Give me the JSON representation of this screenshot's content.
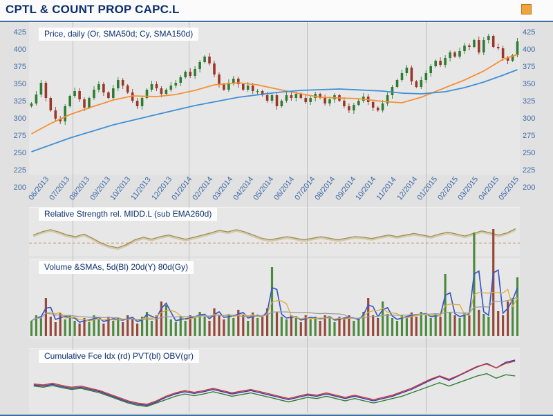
{
  "header": {
    "title": "CPTL & COUNT PROP CAPC.L"
  },
  "palette": {
    "accent_blue": "#3a6ea5",
    "title_text": "#0b2e6e",
    "axis_text": "#3e6ca8",
    "accent_square": "#f2a33c",
    "candle_up": "#2f7d32",
    "candle_down": "#99372a",
    "rs_line": "#9e8c52",
    "rs_line_echo": "#c3b078",
    "rs_baseline": "#c98a5e",
    "vol_up": "#4c8a40",
    "vol_down": "#96483a",
    "vol_ma_colors": [
      "#3a57c4",
      "#dcae3c",
      "#9b9b9b"
    ]
  },
  "chart_data": [
    {
      "type": "candlestick",
      "title": "Price, daily (Or, SMA50d; Cy, SMA150d)",
      "ylim": [
        200,
        440
      ],
      "yticks": [
        425,
        400,
        375,
        350,
        325,
        300,
        275,
        250,
        225,
        200
      ],
      "x_labels": [
        "06/2013",
        "07/2013",
        "08/2013",
        "09/2013",
        "10/2013",
        "11/2013",
        "12/2013",
        "01/2014",
        "02/2014",
        "03/2014",
        "04/2014",
        "05/2014",
        "06/2014",
        "07/2014",
        "08/2014",
        "09/2014",
        "10/2014",
        "11/2014",
        "12/2014",
        "01/2015",
        "02/2015",
        "03/2015",
        "04/2015",
        "05/2015"
      ],
      "open_first": 318,
      "close": [
        322,
        335,
        352,
        330,
        312,
        300,
        296,
        318,
        333,
        340,
        328,
        316,
        330,
        342,
        350,
        338,
        330,
        344,
        356,
        348,
        338,
        326,
        318,
        330,
        342,
        350,
        344,
        336,
        342,
        348,
        352,
        360,
        368,
        362,
        372,
        382,
        390,
        380,
        364,
        350,
        342,
        352,
        358,
        350,
        342,
        348,
        340,
        340,
        334,
        326,
        334,
        318,
        326,
        334,
        330,
        336,
        330,
        324,
        330,
        336,
        330,
        322,
        328,
        334,
        326,
        318,
        312,
        320,
        326,
        332,
        324,
        316,
        312,
        322,
        334,
        346,
        356,
        366,
        374,
        354,
        346,
        356,
        366,
        376,
        384,
        378,
        388,
        396,
        390,
        398,
        406,
        404,
        414,
        396,
        414,
        420,
        404,
        402,
        388,
        384,
        392,
        412
      ],
      "sma50": {
        "name": "SMA50d",
        "color": "#f59033",
        "points": [
          [
            0,
            278
          ],
          [
            4,
            293
          ],
          [
            8,
            306
          ],
          [
            13,
            318
          ],
          [
            17,
            327
          ],
          [
            21,
            333
          ],
          [
            26,
            332
          ],
          [
            30,
            335
          ],
          [
            34,
            341
          ],
          [
            38,
            349
          ],
          [
            43,
            352
          ],
          [
            47,
            349
          ],
          [
            51,
            343
          ],
          [
            56,
            336
          ],
          [
            60,
            331
          ],
          [
            64,
            330
          ],
          [
            68,
            329
          ],
          [
            73,
            325
          ],
          [
            77,
            323
          ],
          [
            81,
            331
          ],
          [
            86,
            345
          ],
          [
            90,
            356
          ],
          [
            94,
            369
          ],
          [
            98,
            386
          ],
          [
            101,
            393
          ]
        ]
      },
      "sma150": {
        "name": "SMA150d",
        "color": "#3f8fd6",
        "points": [
          [
            0,
            252
          ],
          [
            8,
            272
          ],
          [
            17,
            291
          ],
          [
            26,
            306
          ],
          [
            34,
            319
          ],
          [
            43,
            331
          ],
          [
            51,
            338
          ],
          [
            56,
            341
          ],
          [
            64,
            343
          ],
          [
            73,
            340
          ],
          [
            77,
            337
          ],
          [
            81,
            336
          ],
          [
            86,
            339
          ],
          [
            90,
            345
          ],
          [
            94,
            353
          ],
          [
            98,
            363
          ],
          [
            101,
            371
          ]
        ]
      }
    },
    {
      "type": "line",
      "title": "Relative Strength rel. MIDD.L (sub EMA260d)",
      "baseline": 0.7,
      "values": [
        0.45,
        0.35,
        0.28,
        0.35,
        0.45,
        0.5,
        0.42,
        0.55,
        0.7,
        0.8,
        0.85,
        0.75,
        0.6,
        0.52,
        0.58,
        0.5,
        0.45,
        0.52,
        0.58,
        0.52,
        0.45,
        0.38,
        0.3,
        0.35,
        0.28,
        0.35,
        0.45,
        0.55,
        0.6,
        0.55,
        0.5,
        0.55,
        0.6,
        0.55,
        0.5,
        0.55,
        0.6,
        0.55,
        0.5,
        0.52,
        0.56,
        0.5,
        0.45,
        0.5,
        0.45,
        0.4,
        0.45,
        0.5,
        0.42,
        0.36,
        0.42,
        0.48,
        0.4,
        0.32,
        0.38,
        0.45,
        0.38,
        0.25
      ]
    },
    {
      "type": "bar",
      "title": "Volume &SMAs, 5d(Bl) 20d(Y) 80d(Gy)",
      "ma_periods_days": [
        5,
        20,
        80
      ],
      "values": [
        0.22,
        0.3,
        0.26,
        0.55,
        0.28,
        0.2,
        0.33,
        0.24,
        0.3,
        0.22,
        0.18,
        0.26,
        0.2,
        0.3,
        0.24,
        0.18,
        0.28,
        0.22,
        0.26,
        0.2,
        0.3,
        0.24,
        0.18,
        0.28,
        0.35,
        0.22,
        0.3,
        0.5,
        0.45,
        0.24,
        0.2,
        0.28,
        0.22,
        0.3,
        0.26,
        0.35,
        0.28,
        0.22,
        0.4,
        0.3,
        0.24,
        0.32,
        0.26,
        0.38,
        0.3,
        0.22,
        0.34,
        0.26,
        0.3,
        0.4,
        1.0,
        0.35,
        0.28,
        0.24,
        0.3,
        0.26,
        0.2,
        0.3,
        0.24,
        0.28,
        0.22,
        0.3,
        0.26,
        0.2,
        0.28,
        0.24,
        0.3,
        0.22,
        0.26,
        0.35,
        0.55,
        0.3,
        0.26,
        0.5,
        0.32,
        0.26,
        0.22,
        0.3,
        0.26,
        0.34,
        0.28,
        0.35,
        0.3,
        0.26,
        0.32,
        0.28,
        0.9,
        0.35,
        0.3,
        0.26,
        0.34,
        0.3,
        1.5,
        0.38,
        0.32,
        0.28,
        1.55,
        0.36,
        0.3,
        0.5,
        0.55,
        0.85
      ]
    },
    {
      "type": "line",
      "title": "Cumulative Fce Idx (rd) PVT(bl) OBV(gr)",
      "series": [
        {
          "name": "Cumulative Force Index",
          "color": "#c23a32",
          "values": [
            0.48,
            0.5,
            0.47,
            0.51,
            0.54,
            0.52,
            0.56,
            0.6,
            0.66,
            0.72,
            0.78,
            0.82,
            0.84,
            0.78,
            0.7,
            0.64,
            0.6,
            0.63,
            0.6,
            0.56,
            0.6,
            0.64,
            0.61,
            0.58,
            0.62,
            0.66,
            0.7,
            0.74,
            0.7,
            0.66,
            0.68,
            0.64,
            0.68,
            0.72,
            0.68,
            0.72,
            0.76,
            0.72,
            0.68,
            0.62,
            0.56,
            0.48,
            0.4,
            0.34,
            0.4,
            0.33,
            0.25,
            0.17,
            0.13,
            0.2,
            0.12,
            0.08
          ]
        },
        {
          "name": "PVT",
          "color": "#3c34b0",
          "values": [
            0.5,
            0.52,
            0.49,
            0.53,
            0.56,
            0.54,
            0.58,
            0.62,
            0.68,
            0.74,
            0.8,
            0.84,
            0.86,
            0.8,
            0.72,
            0.66,
            0.62,
            0.65,
            0.62,
            0.58,
            0.62,
            0.66,
            0.63,
            0.6,
            0.64,
            0.68,
            0.72,
            0.76,
            0.72,
            0.68,
            0.7,
            0.66,
            0.7,
            0.74,
            0.7,
            0.74,
            0.78,
            0.74,
            0.7,
            0.64,
            0.58,
            0.5,
            0.42,
            0.35,
            0.42,
            0.34,
            0.26,
            0.18,
            0.12,
            0.2,
            0.1,
            0.06
          ]
        },
        {
          "name": "OBV",
          "color": "#2f7d32",
          "values": [
            0.52,
            0.54,
            0.51,
            0.55,
            0.58,
            0.56,
            0.6,
            0.64,
            0.7,
            0.76,
            0.82,
            0.86,
            0.88,
            0.82,
            0.76,
            0.7,
            0.66,
            0.69,
            0.66,
            0.62,
            0.66,
            0.7,
            0.67,
            0.64,
            0.68,
            0.72,
            0.76,
            0.8,
            0.76,
            0.72,
            0.74,
            0.7,
            0.74,
            0.78,
            0.74,
            0.78,
            0.82,
            0.78,
            0.74,
            0.7,
            0.64,
            0.58,
            0.52,
            0.46,
            0.52,
            0.46,
            0.4,
            0.34,
            0.3,
            0.38,
            0.32,
            0.34
          ]
        }
      ]
    }
  ]
}
